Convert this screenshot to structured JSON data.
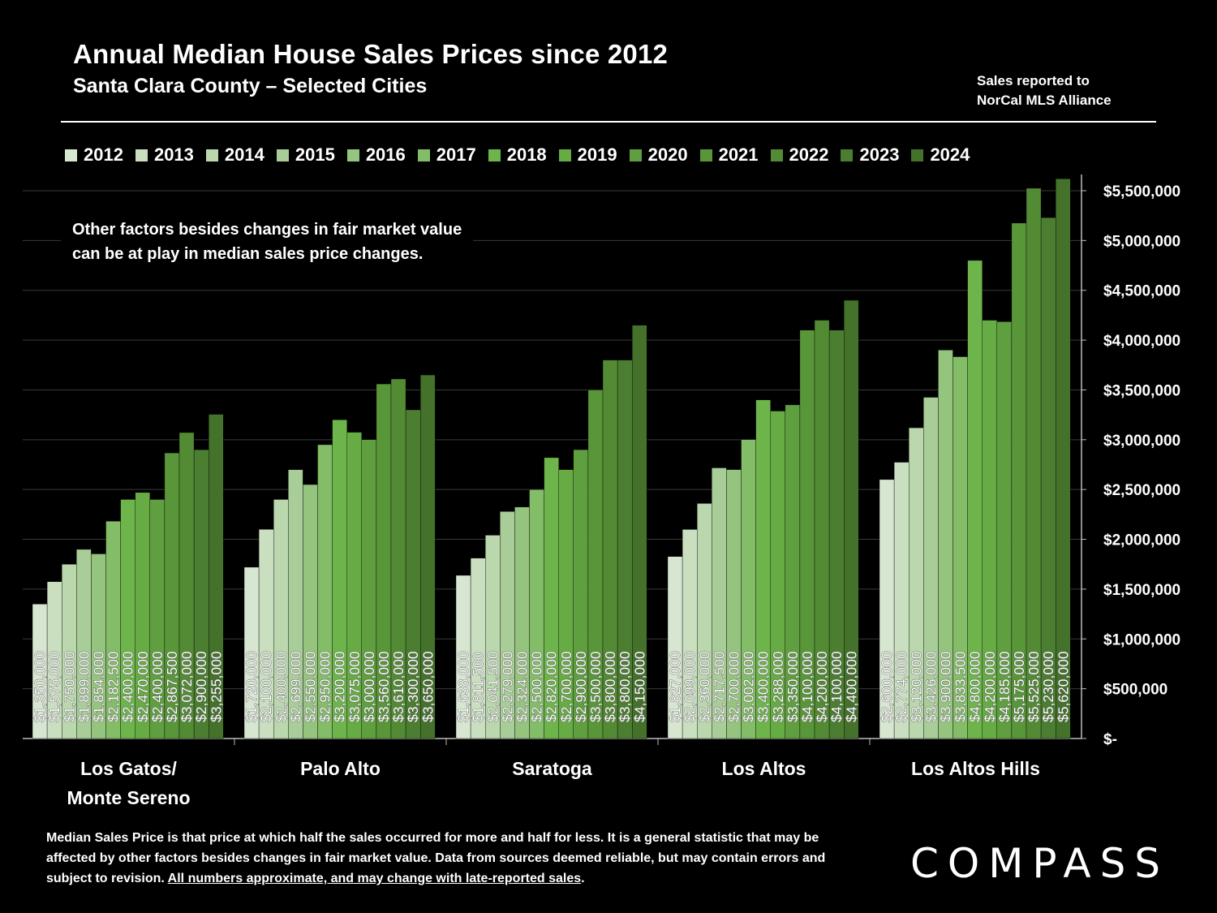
{
  "header": {
    "title": "Annual Median House Sales Prices since 2012",
    "subtitle": "Santa Clara County – Selected Cities",
    "source_line1": "Sales reported to",
    "source_line2": "NorCal MLS Alliance"
  },
  "note": {
    "line1": "Other factors besides changes in fair market value",
    "line2": "can be at play in median sales price changes."
  },
  "footnote": {
    "text": "Median Sales Price is that price at which half the sales occurred for more and half for less. It is a general statistic that may be affected by other factors besides changes in fair market value. Data from sources deemed reliable, but may contain errors and subject to revision. ",
    "underlined": "All numbers approximate, and may change with late-reported sales",
    "end": "."
  },
  "logo": "COMPASS",
  "colors": {
    "background": "#000000",
    "series": [
      "#d7e6d1",
      "#c9dfc0",
      "#bad7ae",
      "#a9cd98",
      "#95c47f",
      "#83bd67",
      "#6db54b",
      "#66ab44",
      "#5f9f3f",
      "#599639",
      "#538b35",
      "#4b7e30",
      "#44722b"
    ]
  },
  "chart_data": {
    "type": "bar",
    "categories": [
      "Los Gatos/\nMonte Sereno",
      "Palo Alto",
      "Saratoga",
      "Los Altos",
      "Los Altos Hills"
    ],
    "category_lines": [
      [
        "Los Gatos/",
        "Monte Sereno"
      ],
      [
        "Palo Alto"
      ],
      [
        "Saratoga"
      ],
      [
        "Los Altos"
      ],
      [
        "Los Altos Hills"
      ]
    ],
    "ylim": [
      0,
      5500000
    ],
    "yticks": [
      0,
      500000,
      1000000,
      1500000,
      2000000,
      2500000,
      3000000,
      3500000,
      4000000,
      4500000,
      5000000,
      5500000
    ],
    "ytick_labels": [
      "$-",
      "$500,000",
      "$1,000,000",
      "$1,500,000",
      "$2,000,000",
      "$2,500,000",
      "$3,000,000",
      "$3,500,000",
      "$4,000,000",
      "$4,500,000",
      "$5,000,000",
      "$5,500,000"
    ],
    "grid": true,
    "legend_position": "top",
    "series": [
      {
        "name": "2012",
        "values": [
          1350000,
          1720000,
          1638000,
          1827000,
          2600000
        ],
        "labels": [
          "$1,350,000",
          "$1,720,000",
          "$1,638,000",
          "$1,827,000",
          "$2,600,000"
        ]
      },
      {
        "name": "2013",
        "values": [
          1575000,
          2100000,
          1811500,
          2099000,
          2774000
        ],
        "labels": [
          "$1,575,000",
          "$2,100,000",
          "$1,811,500",
          "$2,099,000",
          "$2,774,000"
        ]
      },
      {
        "name": "2014",
        "values": [
          1750000,
          2400000,
          2041500,
          2360000,
          3120000
        ],
        "labels": [
          "$1,750,000",
          "$2,400,000",
          "$2,041,500",
          "$2,360,000",
          "$3,120,000"
        ]
      },
      {
        "name": "2015",
        "values": [
          1899000,
          2699000,
          2279000,
          2717500,
          3426000
        ],
        "labels": [
          "$1,899,000",
          "$2,699,000",
          "$2,279,000",
          "$2,717,500",
          "$3,426,000"
        ]
      },
      {
        "name": "2016",
        "values": [
          1854000,
          2550000,
          2324000,
          2700000,
          3900000
        ],
        "labels": [
          "$1,854,000",
          "$2,550,000",
          "$2,324,000",
          "$2,700,000",
          "$3,900,000"
        ]
      },
      {
        "name": "2017",
        "values": [
          2182500,
          2950000,
          2500000,
          3002000,
          3833500
        ],
        "labels": [
          "$2,182,500",
          "$2,950,000",
          "$2,500,000",
          "$3,002,000",
          "$3,833,500"
        ]
      },
      {
        "name": "2018",
        "values": [
          2400000,
          3200000,
          2820000,
          3400000,
          4800000
        ],
        "labels": [
          "$2,400,000",
          "$3,200,000",
          "$2,820,000",
          "$3,400,000",
          "$4,800,000"
        ]
      },
      {
        "name": "2019",
        "values": [
          2470000,
          3075000,
          2700000,
          3288000,
          4200000
        ],
        "labels": [
          "$2,470,000",
          "$3,075,000",
          "$2,700,000",
          "$3,288,000",
          "$4,200,000"
        ]
      },
      {
        "name": "2020",
        "values": [
          2400000,
          3000000,
          2900000,
          3350000,
          4185000
        ],
        "labels": [
          "$2,400,000",
          "$3,000,000",
          "$2,900,000",
          "$3,350,000",
          "$4,185,000"
        ]
      },
      {
        "name": "2021",
        "values": [
          2867500,
          3560000,
          3500000,
          4100000,
          5175000
        ],
        "labels": [
          "$2,867,500",
          "$3,560,000",
          "$3,500,000",
          "$4,100,000",
          "$5,175,000"
        ]
      },
      {
        "name": "2022",
        "values": [
          3072000,
          3610000,
          3800000,
          4200000,
          5525000
        ],
        "labels": [
          "$3,072,000",
          "$3,610,000",
          "$3,800,000",
          "$4,200,000",
          "$5,525,000"
        ]
      },
      {
        "name": "2023",
        "values": [
          2900000,
          3300000,
          3800000,
          4100000,
          5230000
        ],
        "labels": [
          "$2,900,000",
          "$3,300,000",
          "$3,800,000",
          "$4,100,000",
          "$5,230,000"
        ]
      },
      {
        "name": "2024",
        "values": [
          3255000,
          3650000,
          4150000,
          4400000,
          5620000
        ],
        "labels": [
          "$3,255,000",
          "$3,650,000",
          "$4,150,000",
          "$4,400,000",
          "$5,620,000"
        ]
      }
    ]
  }
}
